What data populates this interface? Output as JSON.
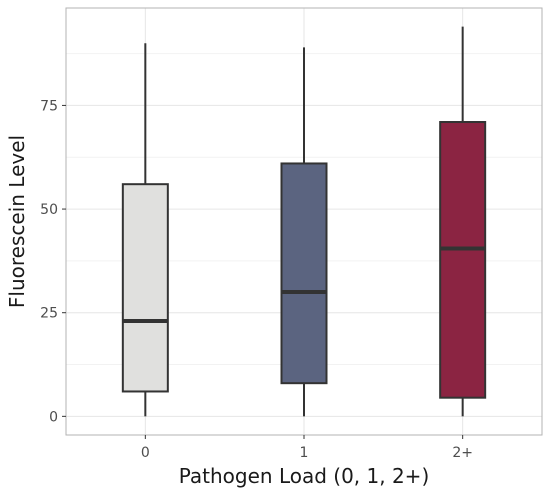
{
  "chart_data": {
    "type": "box",
    "title": "",
    "xlabel": "Pathogen Load (0, 1, 2+)",
    "ylabel": "Fluorescein Level",
    "categories": [
      "0",
      "1",
      "2+"
    ],
    "boxes": [
      {
        "category": "0",
        "min": 0,
        "q1": 6,
        "median": 23,
        "q3": 56,
        "max": 90,
        "color": "#e0e0de"
      },
      {
        "category": "1",
        "min": 0,
        "q1": 8,
        "median": 30,
        "q3": 61,
        "max": 89,
        "color": "#5b6480"
      },
      {
        "category": "2+",
        "min": 0,
        "q1": 4.5,
        "median": 40.5,
        "q3": 71,
        "max": 94,
        "color": "#8b2442"
      }
    ],
    "yticks": [
      0,
      25,
      50,
      75
    ],
    "ylim": [
      -4.5,
      98.5
    ],
    "grid": true,
    "legend": "none",
    "colors": {
      "panel_border": "#b3b3b3",
      "grid_major": "#e6e6e6",
      "grid_minor": "#f2f2f2",
      "box_outline": "#333333"
    }
  }
}
